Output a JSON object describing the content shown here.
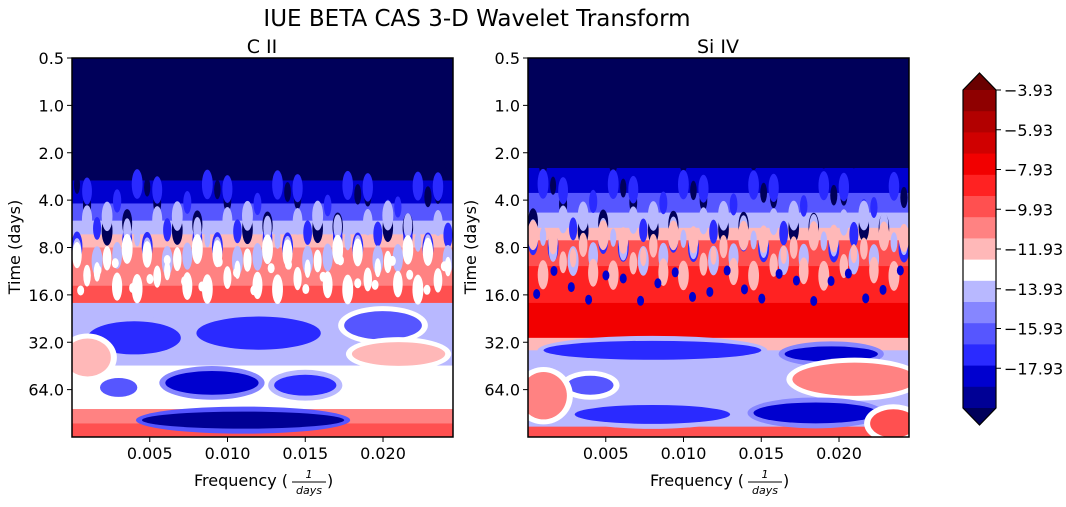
{
  "chart_data": {
    "type": "heatmap",
    "title": "IUE BETA CAS 3-D Wavelet Transform",
    "colors": {
      "levels": [
        "#00005a",
        "#000095",
        "#0000cf",
        "#2a2aff",
        "#5656ff",
        "#8686ff",
        "#b8b8ff",
        "#ffffff",
        "#ffb8b8",
        "#ff8282",
        "#ff5050",
        "#ff2222",
        "#f20000",
        "#d00000",
        "#b20000",
        "#8f0000",
        "#6a0000"
      ]
    },
    "colorbar": {
      "tick_labels": [
        "−3.93",
        "−5.93",
        "−7.93",
        "−9.93",
        "−11.93",
        "−13.93",
        "−15.93",
        "−17.93"
      ],
      "min": -18.93,
      "max": -3.93,
      "extend": "both"
    },
    "panels": [
      {
        "title": "C II",
        "xlabel": "Frequency (",
        "xlabel_num": "1",
        "xlabel_den": "days",
        "xlabel_close": ")",
        "ylabel": "Time (days)",
        "xticks": [
          "0.005",
          "0.010",
          "0.015",
          "0.020"
        ],
        "xrange": [
          0,
          0.0245
        ],
        "yticks": [
          "0.5",
          "1.0",
          "2.0",
          "4.0",
          "8.0",
          "16.0",
          "32.0",
          "64.0"
        ],
        "y_scale": "log2",
        "yrange": [
          0.5,
          128
        ],
        "bands": [
          {
            "t_top": 0.5,
            "t_bot": 3.0,
            "level": 0
          },
          {
            "t_top": 3.0,
            "t_bot": 4.2,
            "level": 2
          },
          {
            "t_top": 4.2,
            "t_bot": 5.4,
            "level": 4
          },
          {
            "t_top": 5.4,
            "t_bot": 6.6,
            "level": 6
          },
          {
            "t_top": 6.6,
            "t_bot": 8.0,
            "level": 8
          },
          {
            "t_top": 8.0,
            "t_bot": 14.0,
            "level": 9
          },
          {
            "t_top": 14.0,
            "t_bot": 18.0,
            "level": 10
          },
          {
            "t_top": 18.0,
            "t_bot": 45.0,
            "level": 6
          },
          {
            "t_top": 45.0,
            "t_bot": 85.0,
            "level": 7
          },
          {
            "t_top": 85.0,
            "t_bot": 105.0,
            "level": 9
          },
          {
            "t_top": 105.0,
            "t_bot": 128.0,
            "level": 10
          }
        ],
        "blobs": [
          {
            "f": 0.004,
            "t": 30,
            "rf": 0.003,
            "rt": 0.35,
            "level": 3
          },
          {
            "f": 0.012,
            "t": 28,
            "rf": 0.004,
            "rt": 0.35,
            "level": 3
          },
          {
            "f": 0.02,
            "t": 25,
            "rf": 0.0025,
            "rt": 0.3,
            "level": 4
          },
          {
            "f": 0.001,
            "t": 40,
            "rf": 0.0015,
            "rt": 0.4,
            "level": 8
          },
          {
            "f": 0.021,
            "t": 38,
            "rf": 0.003,
            "rt": 0.25,
            "level": 8
          },
          {
            "f": 0.009,
            "t": 58,
            "rf": 0.003,
            "rt": 0.25,
            "level": 2
          },
          {
            "f": 0.015,
            "t": 60,
            "rf": 0.002,
            "rt": 0.22,
            "level": 3
          },
          {
            "f": 0.003,
            "t": 62,
            "rf": 0.0012,
            "rt": 0.2,
            "level": 4
          },
          {
            "f": 0.011,
            "t": 100,
            "rf": 0.0065,
            "rt": 0.18,
            "level": 1
          }
        ]
      },
      {
        "title": "Si IV",
        "xlabel": "Frequency (",
        "xlabel_num": "1",
        "xlabel_den": "days",
        "xlabel_close": ")",
        "ylabel": "Time (days)",
        "xticks": [
          "0.005",
          "0.010",
          "0.015",
          "0.020"
        ],
        "xrange": [
          0,
          0.0245
        ],
        "yticks": [
          "0.5",
          "1.0",
          "2.0",
          "4.0",
          "8.0",
          "16.0",
          "32.0",
          "64.0"
        ],
        "y_scale": "log2",
        "yrange": [
          0.5,
          128
        ],
        "bands": [
          {
            "t_top": 0.5,
            "t_bot": 2.5,
            "level": 0
          },
          {
            "t_top": 2.5,
            "t_bot": 3.6,
            "level": 2
          },
          {
            "t_top": 3.6,
            "t_bot": 4.8,
            "level": 4
          },
          {
            "t_top": 4.8,
            "t_bot": 6.0,
            "level": 6
          },
          {
            "t_top": 6.0,
            "t_bot": 7.2,
            "level": 8
          },
          {
            "t_top": 7.2,
            "t_bot": 10.5,
            "level": 10
          },
          {
            "t_top": 10.5,
            "t_bot": 18.0,
            "level": 11
          },
          {
            "t_top": 18.0,
            "t_bot": 30.0,
            "level": 12
          },
          {
            "t_top": 30.0,
            "t_bot": 36.0,
            "level": 8
          },
          {
            "t_top": 36.0,
            "t_bot": 110.0,
            "level": 6
          },
          {
            "t_top": 110.0,
            "t_bot": 128.0,
            "level": 10
          }
        ],
        "blobs": [
          {
            "f": 0.008,
            "t": 36,
            "rf": 0.007,
            "rt": 0.2,
            "level": 3
          },
          {
            "f": 0.0195,
            "t": 38,
            "rf": 0.003,
            "rt": 0.16,
            "level": 2
          },
          {
            "f": 0.021,
            "t": 55,
            "rf": 0.004,
            "rt": 0.35,
            "level": 9
          },
          {
            "f": 0.0185,
            "t": 90,
            "rf": 0.004,
            "rt": 0.22,
            "level": 2
          },
          {
            "f": 0.008,
            "t": 92,
            "rf": 0.005,
            "rt": 0.2,
            "level": 3
          },
          {
            "f": 0.004,
            "t": 60,
            "rf": 0.0015,
            "rt": 0.2,
            "level": 4
          },
          {
            "f": 0.001,
            "t": 70,
            "rf": 0.0015,
            "rt": 0.5,
            "level": 9
          },
          {
            "f": 0.0235,
            "t": 105,
            "rf": 0.0015,
            "rt": 0.3,
            "level": 10
          }
        ]
      }
    ]
  }
}
